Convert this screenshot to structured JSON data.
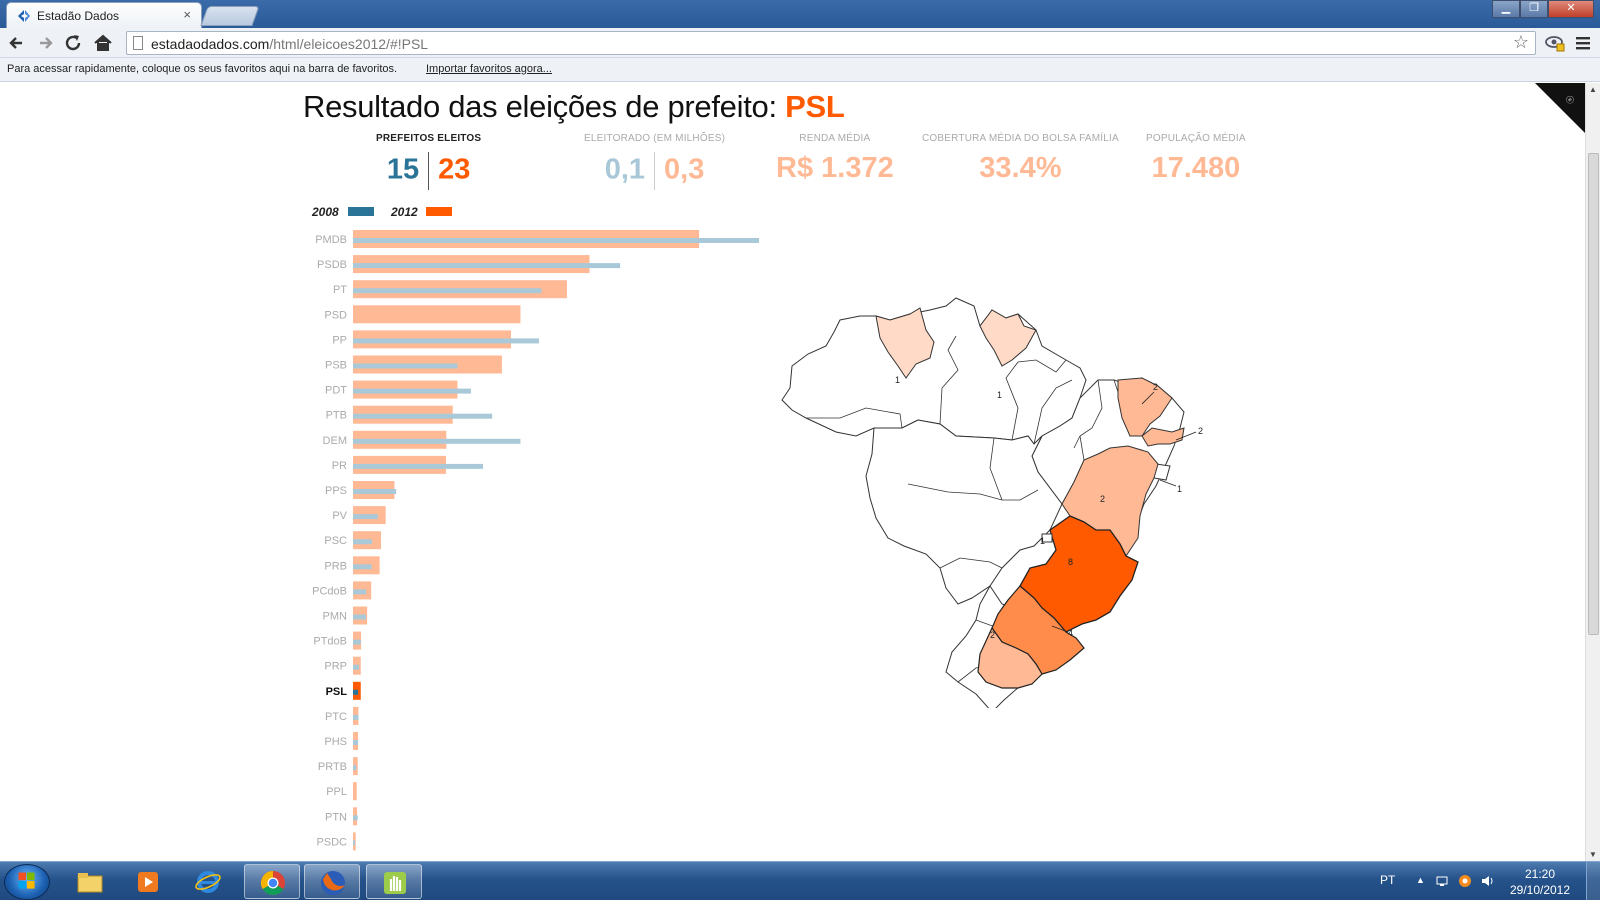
{
  "browser": {
    "tab_title": "Estadão Dados",
    "tab_close": "×",
    "url_host": "estadaodados.com",
    "url_path": "/html/eleicoes2012/#!PSL",
    "bookmark_message": "Para acessar rapidamente, coloque os seus favoritos aqui na barra de favoritos.",
    "bookmark_import_link": "Importar favoritos agora..."
  },
  "page": {
    "title_prefix": "Resultado das eleições de prefeito: ",
    "title_party": "PSL",
    "stats": {
      "prefeitos_label": "PREFEITOS ELEITOS",
      "prefeitos_2008": "15",
      "prefeitos_2012": "23",
      "eleitorado_label": "ELEITORADO (EM MILHÕES)",
      "eleitorado_2008": "0,1",
      "eleitorado_2012": "0,3",
      "renda_label": "RENDA MÉDIA",
      "renda_value": "R$ 1.372",
      "bolsa_label": "COBERTURA MÉDIA DO BOLSA FAMÍLIA",
      "bolsa_value": "33.4%",
      "populacao_label": "POPULAÇÃO MÉDIA",
      "populacao_value": "17.480"
    },
    "legend": {
      "y2008": "2008",
      "y2012": "2012"
    },
    "colors": {
      "c2008": "#2a7497",
      "c2012": "#ff5a00",
      "bar2008_light": "#a9c9d8",
      "bar2012_light": "#ffb995",
      "accent": "#ff5a00"
    }
  },
  "chart_data": {
    "type": "bar",
    "orientation": "horizontal",
    "title": "",
    "highlight": "PSL",
    "categories": [
      "PMDB",
      "PSDB",
      "PT",
      "PSD",
      "PP",
      "PSB",
      "PDT",
      "PTB",
      "DEM",
      "PR",
      "PPS",
      "PV",
      "PSC",
      "PRB",
      "PCdoB",
      "PMN",
      "PTdoB",
      "PRP",
      "PSL",
      "PTC",
      "PHS",
      "PRTB",
      "PPL",
      "PTN",
      "PSDC"
    ],
    "series": [
      {
        "name": "2012",
        "values": [
          1027,
          702,
          635,
          497,
          469,
          442,
          310,
          296,
          277,
          276,
          123,
          97,
          83,
          79,
          54,
          42,
          24,
          23,
          23,
          16,
          15,
          14,
          11,
          12,
          8
        ]
      },
      {
        "name": "2008",
        "values": [
          1205,
          793,
          559,
          0,
          552,
          310,
          350,
          413,
          497,
          386,
          128,
          74,
          56,
          55,
          39,
          39,
          23,
          18,
          15,
          16,
          15,
          10,
          0,
          14,
          6
        ]
      }
    ]
  },
  "map_labels": {
    "RR": "1",
    "AP": "1",
    "CE": "2",
    "PB": "2",
    "AL": "1",
    "BA": "2",
    "MG": "8",
    "SP": "4",
    "PR": "2",
    "GO": "1"
  },
  "taskbar": {
    "lang": "PT",
    "time": "21:20",
    "date": "29/10/2012"
  }
}
